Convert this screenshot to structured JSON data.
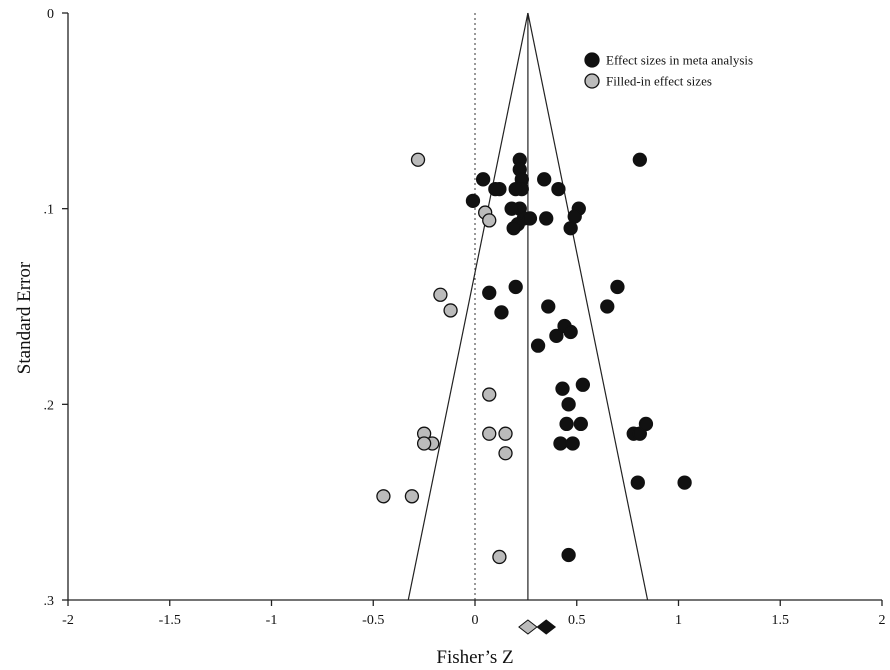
{
  "chart_data": {
    "type": "scatter",
    "xlabel": "Fisher’s Z",
    "ylabel": "Standard Error",
    "xlim": [
      -2,
      2
    ],
    "ylim": [
      0,
      0.3
    ],
    "y_reversed": true,
    "x_ticks": [
      {
        "value": -2,
        "label": "-2"
      },
      {
        "value": -1.5,
        "label": "-1.5"
      },
      {
        "value": -1,
        "label": "-1"
      },
      {
        "value": -0.5,
        "label": "-0.5"
      },
      {
        "value": 0,
        "label": "0"
      },
      {
        "value": 0.5,
        "label": "0.5"
      },
      {
        "value": 1,
        "label": "1"
      },
      {
        "value": 1.5,
        "label": "1.5"
      },
      {
        "value": 2,
        "label": "2"
      }
    ],
    "y_ticks": [
      {
        "value": 0,
        "label": "0"
      },
      {
        "value": 0.1,
        "label": ".1"
      },
      {
        "value": 0.2,
        "label": ".2"
      },
      {
        "value": 0.3,
        "label": ".3"
      }
    ],
    "legend": {
      "placement": "top-right",
      "entries": [
        {
          "label": "Effect sizes in meta analysis",
          "color": "#111111"
        },
        {
          "label": "Filled-in effect sizes",
          "color": "#bbbbbb"
        }
      ]
    },
    "funnel": {
      "center": 0.26,
      "apex_se": 0,
      "max_se": 0.3
    },
    "null_line_x": 0,
    "series": [
      {
        "name": "Effect sizes in meta analysis",
        "color": "#111111",
        "points": [
          [
            0.22,
            0.075
          ],
          [
            0.22,
            0.08
          ],
          [
            0.23,
            0.085
          ],
          [
            0.23,
            0.09
          ],
          [
            0.2,
            0.09
          ],
          [
            0.04,
            0.085
          ],
          [
            0.12,
            0.09
          ],
          [
            0.1,
            0.09
          ],
          [
            0.34,
            0.085
          ],
          [
            0.41,
            0.09
          ],
          [
            0.81,
            0.075
          ],
          [
            0.22,
            0.1
          ],
          [
            0.18,
            0.1
          ],
          [
            0.24,
            0.105
          ],
          [
            0.27,
            0.105
          ],
          [
            0.21,
            0.108
          ],
          [
            0.19,
            0.11
          ],
          [
            0.35,
            0.105
          ],
          [
            0.47,
            0.11
          ],
          [
            0.51,
            0.1
          ],
          [
            0.49,
            0.104
          ],
          [
            -0.01,
            0.096
          ],
          [
            0.2,
            0.14
          ],
          [
            0.07,
            0.143
          ],
          [
            0.13,
            0.153
          ],
          [
            0.36,
            0.15
          ],
          [
            0.7,
            0.14
          ],
          [
            0.65,
            0.15
          ],
          [
            0.44,
            0.16
          ],
          [
            0.47,
            0.163
          ],
          [
            0.4,
            0.165
          ],
          [
            0.31,
            0.17
          ],
          [
            0.43,
            0.192
          ],
          [
            0.53,
            0.19
          ],
          [
            0.46,
            0.2
          ],
          [
            0.45,
            0.21
          ],
          [
            0.52,
            0.21
          ],
          [
            0.42,
            0.22
          ],
          [
            0.48,
            0.22
          ],
          [
            0.78,
            0.215
          ],
          [
            0.81,
            0.215
          ],
          [
            0.84,
            0.21
          ],
          [
            0.8,
            0.24
          ],
          [
            1.03,
            0.24
          ],
          [
            0.46,
            0.277
          ]
        ]
      },
      {
        "name": "Filled-in effect sizes",
        "color": "#bbbbbb",
        "points": [
          [
            -0.28,
            0.075
          ],
          [
            0.05,
            0.102
          ],
          [
            0.07,
            0.106
          ],
          [
            -0.17,
            0.144
          ],
          [
            -0.12,
            0.152
          ],
          [
            0.07,
            0.195
          ],
          [
            -0.25,
            0.215
          ],
          [
            -0.21,
            0.22
          ],
          [
            -0.25,
            0.22
          ],
          [
            0.07,
            0.215
          ],
          [
            0.15,
            0.215
          ],
          [
            0.15,
            0.225
          ],
          [
            -0.45,
            0.247
          ],
          [
            -0.31,
            0.247
          ],
          [
            0.12,
            0.278
          ]
        ]
      }
    ],
    "summary_markers": [
      {
        "x": 0.35,
        "color": "#111111"
      },
      {
        "x": 0.26,
        "color": "#bbbbbb"
      }
    ]
  }
}
